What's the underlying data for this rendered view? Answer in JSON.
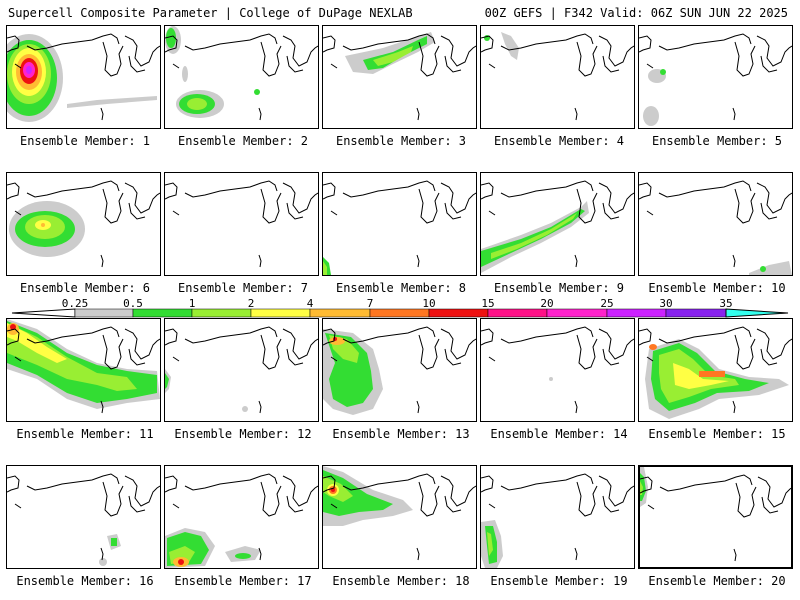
{
  "header": {
    "left": "Supercell Composite Parameter | College of DuPage NEXLAB",
    "right": "00Z GEFS | F342 Valid: 06Z SUN JUN 22 2025"
  },
  "colorbar": {
    "labels": [
      "0.25",
      "0.5",
      "1",
      "2",
      "4",
      "7",
      "10",
      "15",
      "20",
      "25",
      "30",
      "35"
    ],
    "colors": [
      "#cccccc",
      "#33dd33",
      "#99ee33",
      "#ffff44",
      "#ffbb33",
      "#ff7722",
      "#ee1111",
      "#ff1188",
      "#ff22cc",
      "#cc22ff",
      "#8822ee",
      "#aa66dd",
      "#33ffee"
    ]
  },
  "panels": [
    {
      "label": "Ensemble Member: 1"
    },
    {
      "label": "Ensemble Member: 2"
    },
    {
      "label": "Ensemble Member: 3"
    },
    {
      "label": "Ensemble Member: 4"
    },
    {
      "label": "Ensemble Member: 5"
    },
    {
      "label": "Ensemble Member: 6"
    },
    {
      "label": "Ensemble Member: 7"
    },
    {
      "label": "Ensemble Member: 8"
    },
    {
      "label": "Ensemble Member: 9"
    },
    {
      "label": "Ensemble Member: 10"
    },
    {
      "label": "Ensemble Member: 11"
    },
    {
      "label": "Ensemble Member: 12"
    },
    {
      "label": "Ensemble Member: 13"
    },
    {
      "label": "Ensemble Member: 14"
    },
    {
      "label": "Ensemble Member: 15"
    },
    {
      "label": "Ensemble Member: 16"
    },
    {
      "label": "Ensemble Member: 17"
    },
    {
      "label": "Ensemble Member: 18"
    },
    {
      "label": "Ensemble Member: 19"
    },
    {
      "label": "Ensemble Member: 20"
    }
  ]
}
